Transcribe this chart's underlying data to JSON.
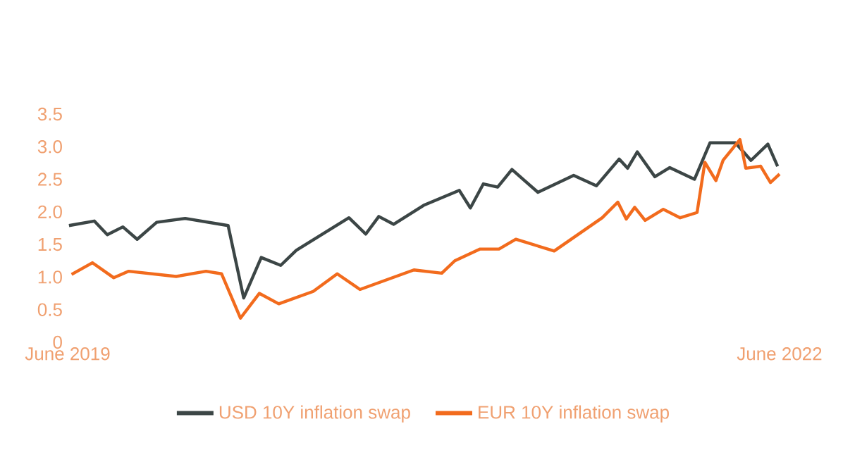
{
  "chart_data": {
    "type": "line",
    "xlim": [
      "2019-06-01",
      "2022-06-01"
    ],
    "xticks": [
      {
        "value": "2019-06-01",
        "label": "June 2019"
      },
      {
        "value": "2022-06-01",
        "label": "June 2022"
      }
    ],
    "ylim": [
      0,
      3.5
    ],
    "yticks": [
      0,
      0.5,
      {
        "value": 1,
        "label": "1.0"
      },
      1.5,
      {
        "value": 2,
        "label": "2.0"
      },
      2.5,
      {
        "value": 3,
        "label": "3.0"
      },
      3.5
    ],
    "legend": "bottom",
    "series": [
      {
        "name": "USD 10Y inflation swap",
        "color": "#3c4646",
        "x": [
          "2019-06-03",
          "2019-07-12",
          "2019-08-01",
          "2019-08-25",
          "2019-09-16",
          "2019-10-16",
          "2019-11-29",
          "2020-02-03",
          "2020-02-27",
          "2020-03-25",
          "2020-04-24",
          "2020-05-18",
          "2020-08-07",
          "2020-09-02",
          "2020-09-22",
          "2020-10-15",
          "2020-11-30",
          "2021-01-24",
          "2021-02-10",
          "2021-03-02",
          "2021-03-24",
          "2021-04-15",
          "2021-05-25",
          "2021-07-19",
          "2021-08-23",
          "2021-09-27",
          "2021-10-10",
          "2021-10-25",
          "2021-11-21",
          "2021-12-14",
          "2022-01-21",
          "2022-02-14",
          "2022-03-25",
          "2022-04-18",
          "2022-05-14",
          "2022-05-29"
        ],
        "values": [
          1.79,
          1.86,
          1.65,
          1.77,
          1.58,
          1.84,
          1.9,
          1.79,
          0.68,
          1.3,
          1.18,
          1.41,
          1.91,
          1.66,
          1.93,
          1.81,
          2.1,
          2.33,
          2.06,
          2.43,
          2.38,
          2.65,
          2.3,
          2.56,
          2.4,
          2.81,
          2.67,
          2.92,
          2.54,
          2.68,
          2.5,
          3.06,
          3.06,
          2.79,
          3.04,
          2.7
        ]
      },
      {
        "name": "EUR  10Y inflation swap",
        "color": "#f26b1d",
        "x": [
          "2019-06-07",
          "2019-07-09",
          "2019-08-11",
          "2019-09-03",
          "2019-11-15",
          "2019-12-31",
          "2020-01-24",
          "2020-02-22",
          "2020-03-22",
          "2020-04-21",
          "2020-06-13",
          "2020-07-20",
          "2020-08-24",
          "2020-11-15",
          "2020-12-28",
          "2021-01-17",
          "2021-02-25",
          "2021-03-26",
          "2021-04-21",
          "2021-06-19",
          "2021-09-01",
          "2021-09-25",
          "2021-10-08",
          "2021-10-21",
          "2021-11-06",
          "2021-12-04",
          "2021-12-30",
          "2022-01-25",
          "2022-02-06",
          "2022-02-23",
          "2022-03-06",
          "2022-04-01",
          "2022-04-10",
          "2022-05-03",
          "2022-05-18",
          "2022-06-01"
        ],
        "values": [
          1.04,
          1.22,
          0.99,
          1.09,
          1.01,
          1.09,
          1.05,
          0.37,
          0.75,
          0.59,
          0.78,
          1.05,
          0.81,
          1.11,
          1.06,
          1.25,
          1.43,
          1.43,
          1.58,
          1.4,
          1.91,
          2.15,
          1.89,
          2.07,
          1.87,
          2.04,
          1.91,
          1.99,
          2.76,
          2.48,
          2.79,
          3.11,
          2.67,
          2.7,
          2.45,
          2.58
        ]
      }
    ]
  }
}
